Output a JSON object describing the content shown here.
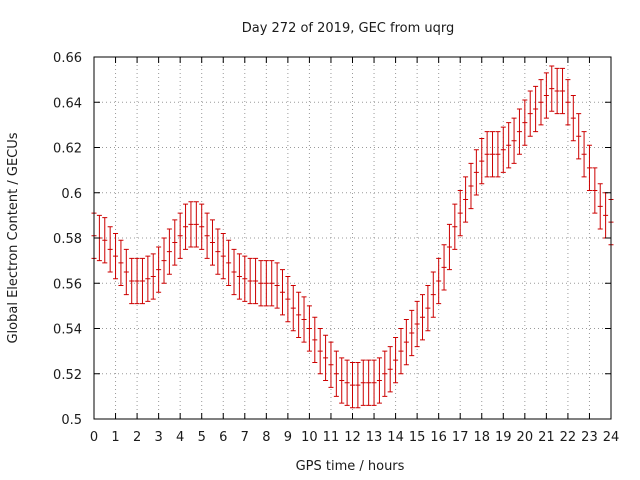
{
  "chart_data": {
    "type": "scatter",
    "title": "Day 272 of 2019, GEC from uqrg",
    "xlabel": "GPS time / hours",
    "ylabel": "Global Electron Content / GECUs",
    "xlim": [
      0,
      24
    ],
    "ylim": [
      0.5,
      0.66
    ],
    "x_ticks": [
      "0",
      "1",
      "2",
      "3",
      "4",
      "5",
      "6",
      "7",
      "8",
      "9",
      "10",
      "11",
      "12",
      "13",
      "14",
      "15",
      "16",
      "17",
      "18",
      "19",
      "20",
      "21",
      "22",
      "23",
      "24"
    ],
    "y_ticks": [
      "0.5",
      "0.52",
      "0.54",
      "0.56",
      "0.58",
      "0.6",
      "0.62",
      "0.64",
      "0.66"
    ],
    "grid": true,
    "colors": {
      "series": "#cc0000"
    },
    "series": [
      {
        "name": "GEC",
        "error_bar": 0.01,
        "points": [
          {
            "x": 0.0,
            "y": 0.581
          },
          {
            "x": 0.25,
            "y": 0.58
          },
          {
            "x": 0.5,
            "y": 0.579
          },
          {
            "x": 0.75,
            "y": 0.575
          },
          {
            "x": 1.0,
            "y": 0.572
          },
          {
            "x": 1.25,
            "y": 0.569
          },
          {
            "x": 1.5,
            "y": 0.565
          },
          {
            "x": 1.75,
            "y": 0.561
          },
          {
            "x": 2.0,
            "y": 0.561
          },
          {
            "x": 2.25,
            "y": 0.561
          },
          {
            "x": 2.5,
            "y": 0.562
          },
          {
            "x": 2.75,
            "y": 0.563
          },
          {
            "x": 3.0,
            "y": 0.566
          },
          {
            "x": 3.25,
            "y": 0.57
          },
          {
            "x": 3.5,
            "y": 0.574
          },
          {
            "x": 3.75,
            "y": 0.578
          },
          {
            "x": 4.0,
            "y": 0.581
          },
          {
            "x": 4.25,
            "y": 0.585
          },
          {
            "x": 4.5,
            "y": 0.586
          },
          {
            "x": 4.75,
            "y": 0.586
          },
          {
            "x": 5.0,
            "y": 0.585
          },
          {
            "x": 5.25,
            "y": 0.581
          },
          {
            "x": 5.5,
            "y": 0.578
          },
          {
            "x": 5.75,
            "y": 0.574
          },
          {
            "x": 6.0,
            "y": 0.572
          },
          {
            "x": 6.25,
            "y": 0.569
          },
          {
            "x": 6.5,
            "y": 0.565
          },
          {
            "x": 6.75,
            "y": 0.563
          },
          {
            "x": 7.0,
            "y": 0.562
          },
          {
            "x": 7.25,
            "y": 0.561
          },
          {
            "x": 7.5,
            "y": 0.561
          },
          {
            "x": 7.75,
            "y": 0.56
          },
          {
            "x": 8.0,
            "y": 0.56
          },
          {
            "x": 8.25,
            "y": 0.56
          },
          {
            "x": 8.5,
            "y": 0.559
          },
          {
            "x": 8.75,
            "y": 0.556
          },
          {
            "x": 9.0,
            "y": 0.553
          },
          {
            "x": 9.25,
            "y": 0.549
          },
          {
            "x": 9.5,
            "y": 0.546
          },
          {
            "x": 9.75,
            "y": 0.544
          },
          {
            "x": 10.0,
            "y": 0.54
          },
          {
            "x": 10.25,
            "y": 0.535
          },
          {
            "x": 10.5,
            "y": 0.53
          },
          {
            "x": 10.75,
            "y": 0.527
          },
          {
            "x": 11.0,
            "y": 0.524
          },
          {
            "x": 11.25,
            "y": 0.52
          },
          {
            "x": 11.5,
            "y": 0.517
          },
          {
            "x": 11.75,
            "y": 0.516
          },
          {
            "x": 12.0,
            "y": 0.515
          },
          {
            "x": 12.25,
            "y": 0.515
          },
          {
            "x": 12.5,
            "y": 0.516
          },
          {
            "x": 12.75,
            "y": 0.516
          },
          {
            "x": 13.0,
            "y": 0.516
          },
          {
            "x": 13.25,
            "y": 0.517
          },
          {
            "x": 13.5,
            "y": 0.52
          },
          {
            "x": 13.75,
            "y": 0.522
          },
          {
            "x": 14.0,
            "y": 0.526
          },
          {
            "x": 14.25,
            "y": 0.53
          },
          {
            "x": 14.5,
            "y": 0.534
          },
          {
            "x": 14.75,
            "y": 0.538
          },
          {
            "x": 15.0,
            "y": 0.542
          },
          {
            "x": 15.25,
            "y": 0.545
          },
          {
            "x": 15.5,
            "y": 0.549
          },
          {
            "x": 15.75,
            "y": 0.555
          },
          {
            "x": 16.0,
            "y": 0.561
          },
          {
            "x": 16.25,
            "y": 0.567
          },
          {
            "x": 16.5,
            "y": 0.576
          },
          {
            "x": 16.75,
            "y": 0.585
          },
          {
            "x": 17.0,
            "y": 0.591
          },
          {
            "x": 17.25,
            "y": 0.597
          },
          {
            "x": 17.5,
            "y": 0.603
          },
          {
            "x": 17.75,
            "y": 0.609
          },
          {
            "x": 18.0,
            "y": 0.614
          },
          {
            "x": 18.25,
            "y": 0.617
          },
          {
            "x": 18.5,
            "y": 0.617
          },
          {
            "x": 18.75,
            "y": 0.617
          },
          {
            "x": 19.0,
            "y": 0.619
          },
          {
            "x": 19.25,
            "y": 0.621
          },
          {
            "x": 19.5,
            "y": 0.623
          },
          {
            "x": 19.75,
            "y": 0.627
          },
          {
            "x": 20.0,
            "y": 0.631
          },
          {
            "x": 20.25,
            "y": 0.635
          },
          {
            "x": 20.5,
            "y": 0.637
          },
          {
            "x": 20.75,
            "y": 0.64
          },
          {
            "x": 21.0,
            "y": 0.643
          },
          {
            "x": 21.25,
            "y": 0.646
          },
          {
            "x": 21.5,
            "y": 0.645
          },
          {
            "x": 21.75,
            "y": 0.645
          },
          {
            "x": 22.0,
            "y": 0.64
          },
          {
            "x": 22.25,
            "y": 0.633
          },
          {
            "x": 22.5,
            "y": 0.625
          },
          {
            "x": 22.75,
            "y": 0.617
          },
          {
            "x": 23.0,
            "y": 0.611
          },
          {
            "x": 23.25,
            "y": 0.601
          },
          {
            "x": 23.5,
            "y": 0.594
          },
          {
            "x": 23.75,
            "y": 0.59
          },
          {
            "x": 24.0,
            "y": 0.587
          }
        ]
      }
    ]
  }
}
